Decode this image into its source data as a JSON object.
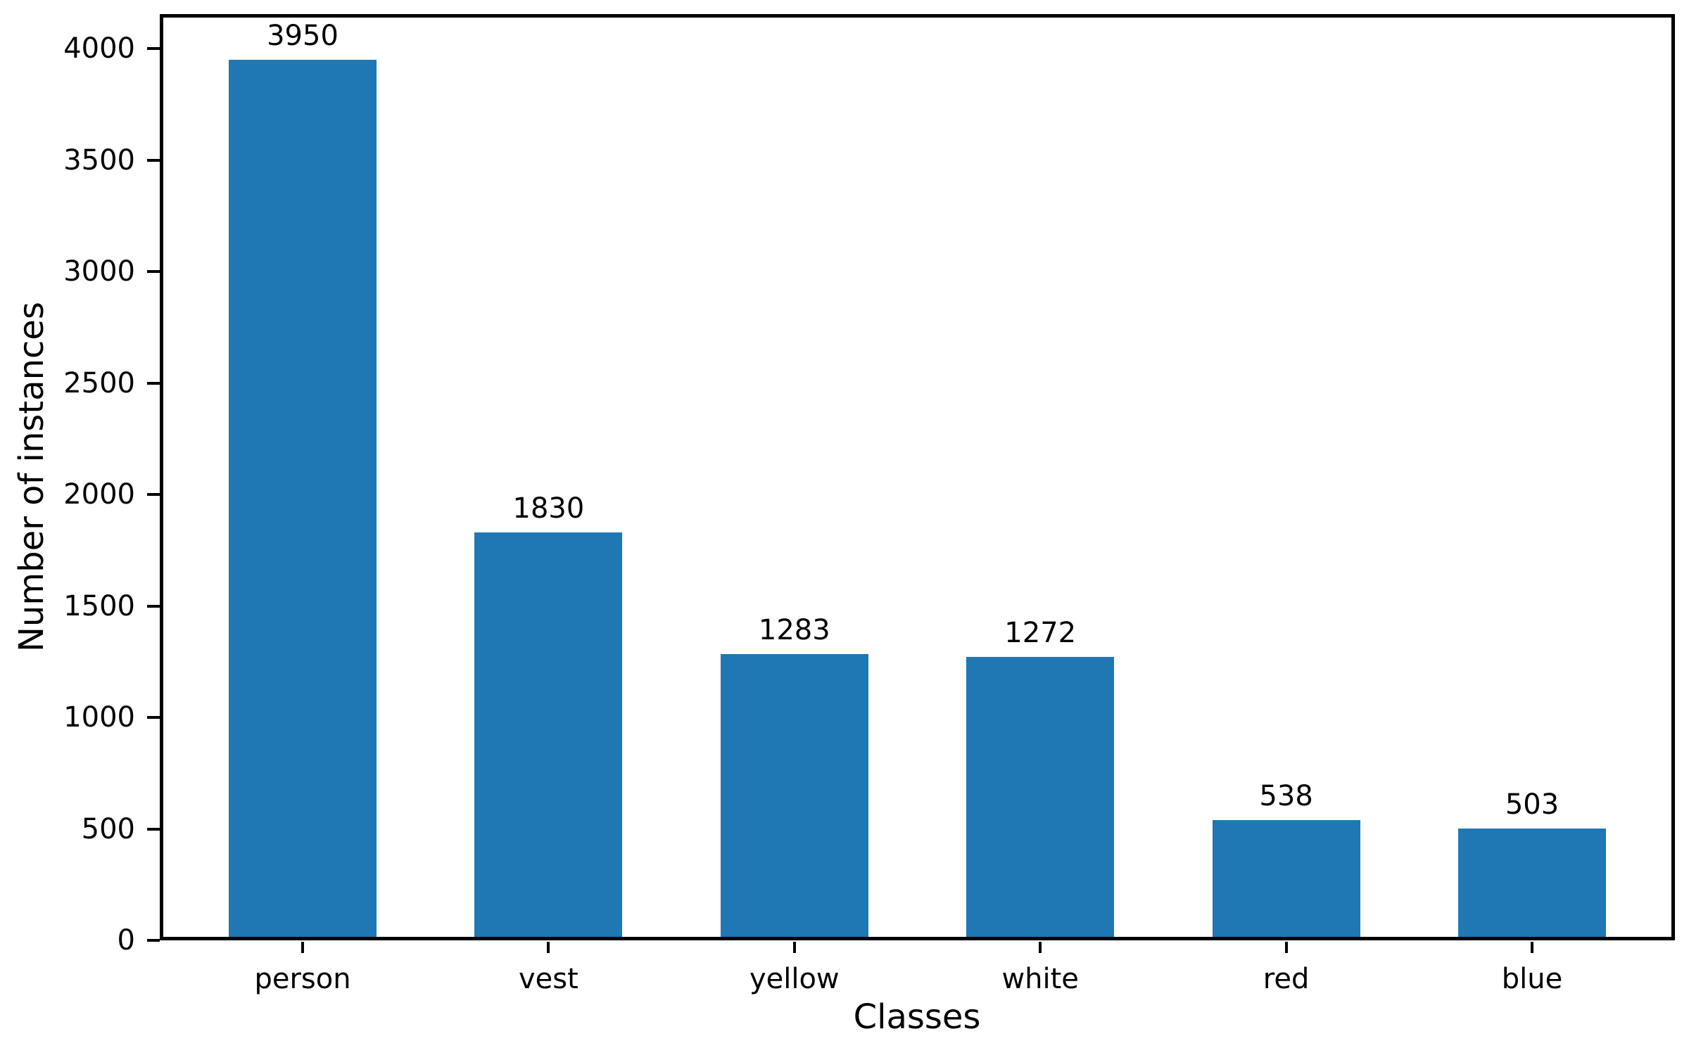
{
  "chart_data": {
    "type": "bar",
    "title": "",
    "xlabel": "Classes",
    "ylabel": "Number of instances",
    "categories": [
      "person",
      "vest",
      "yellow",
      "white",
      "red",
      "blue"
    ],
    "values": [
      3950,
      1830,
      1283,
      1272,
      538,
      503
    ],
    "bar_labels": [
      "3950",
      "1830",
      "1283",
      "1272",
      "538",
      "503"
    ],
    "yticks": [
      0,
      500,
      1000,
      1500,
      2000,
      2500,
      3000,
      3500,
      4000
    ],
    "ylim": [
      0,
      4155
    ],
    "grid": false,
    "legend": false,
    "bar_color": "#1f77b4",
    "axis_color": "#000000",
    "text_color": "#000000",
    "background_color": "#ffffff"
  }
}
